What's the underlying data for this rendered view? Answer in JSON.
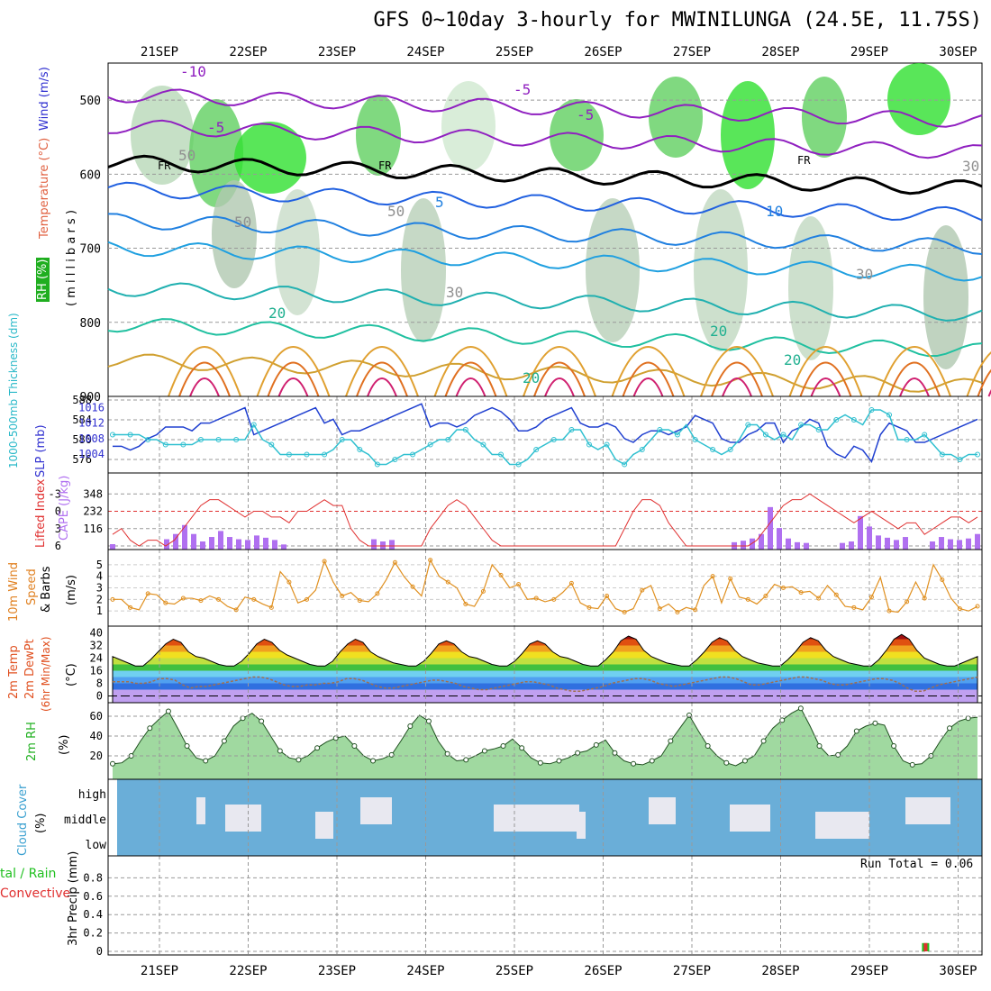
{
  "title": "GFS 0~10day 3-hourly for MWINILUNGA (24.5E, 11.75S)",
  "colors": {
    "rh": "#1fae1f",
    "temp": "#d05028",
    "wind": "#000000",
    "thick": "#28c0d0",
    "slp": "#4040d0",
    "cape": "#b070f0",
    "lifted": "#e03030",
    "wind10": "#e08020",
    "temp2m": "#e05020",
    "dewpt": "#d08030",
    "rh2m": "#20b020",
    "cloud": "#3aa0d0",
    "precip_total": "#20c020",
    "precip_conv": "#e03030"
  },
  "labels": {
    "rh": "RH (%)",
    "temperature": "Temperature (°C)",
    "wind": "Wind (m/s)",
    "millibars": "( m i l l i b a r s )",
    "thickness": "1000-500mb Thickness (dm)",
    "slp": "SLP (mb)",
    "lifted": "Lifted Index",
    "cape": "CAPE (J/kg)",
    "wind10": "10m Wind",
    "speed": "Speed",
    "barbs": "& Barbs",
    "ms": "(m/s)",
    "temp2m": "2m Temp",
    "dewpt": "2m DewPt",
    "minmax": "(6hr Min/Max)",
    "degc": "(°C)",
    "rh2m": "2m RH",
    "pct": "(%)",
    "cloud": "Cloud Cover",
    "cloud_pct": "(%)",
    "precip_total": "tal / Rain",
    "precip_conv": "Convective",
    "precip_axis": "3hr Precip (mm)",
    "run_total": "Run Total = 0.06"
  },
  "chart_data": [
    {
      "type": "line",
      "panel": "upper-air",
      "x": [
        "21SEP",
        "22SEP",
        "23SEP",
        "24SEP",
        "25SEP",
        "26SEP",
        "27SEP",
        "28SEP",
        "29SEP",
        "30SEP"
      ],
      "ylabel": "(millibars)",
      "ylim": [
        900,
        450
      ],
      "yticks": [
        500,
        600,
        700,
        800,
        900
      ],
      "contour_labels": [
        "-10",
        "-5",
        "-5",
        "-5",
        "FR",
        "FR",
        "FR",
        "5",
        "10",
        "20",
        "20",
        "20",
        "20",
        "50",
        "50",
        "50",
        "30",
        "30",
        "30"
      ]
    },
    {
      "type": "line",
      "panel": "thickness-slp",
      "ylabel": "1000-500mb Thickness (dm)",
      "ylim": [
        574,
        588
      ],
      "yticks": [
        576,
        580,
        584,
        588
      ],
      "y2label": "SLP (mb)",
      "y2lim": [
        1000,
        1018
      ],
      "y2ticks": [
        1004,
        1008,
        1012,
        1016
      ],
      "series": [
        {
          "name": "SLP (mb)",
          "values": [
            1006,
            1006,
            1005,
            1006,
            1008,
            1009,
            1011,
            1011,
            1011,
            1010,
            1012,
            1012,
            1013,
            1014,
            1015,
            1016,
            1009,
            1010,
            1011,
            1012,
            1013,
            1014,
            1015,
            1016,
            1012,
            1013,
            1009,
            1010,
            1010,
            1011,
            1012,
            1013,
            1014,
            1015,
            1016,
            1017,
            1011,
            1012,
            1012,
            1011,
            1012,
            1014,
            1015,
            1016,
            1015,
            1013,
            1010,
            1010,
            1011,
            1013,
            1014,
            1015,
            1016,
            1012,
            1011,
            1011,
            1012,
            1011,
            1008,
            1007,
            1009,
            1010,
            1010,
            1009,
            1010,
            1011,
            1014,
            1013,
            1012,
            1008,
            1007,
            1007,
            1009,
            1010,
            1012,
            1012,
            1007,
            1010,
            1011,
            1013,
            1012,
            1006,
            1004,
            1003,
            1006,
            1005,
            1002,
            1009,
            1012,
            1011,
            1010,
            1007,
            1007,
            1008,
            1009,
            1010,
            1011,
            1012,
            1013
          ]
        },
        {
          "name": "1000-500mb Thickness (dm)",
          "values": [
            581,
            581,
            581,
            581,
            580,
            580,
            579,
            579,
            579,
            579,
            580,
            580,
            580,
            580,
            580,
            580,
            583,
            580,
            579,
            577,
            577,
            577,
            577,
            577,
            577,
            578,
            580,
            580,
            578,
            577,
            575,
            575,
            576,
            577,
            577,
            578,
            579,
            580,
            580,
            582,
            582,
            580,
            579,
            577,
            577,
            575,
            575,
            576,
            578,
            579,
            580,
            580,
            582,
            582,
            579,
            578,
            579,
            576,
            575,
            577,
            578,
            580,
            582,
            582,
            581,
            583,
            580,
            579,
            578,
            577,
            578,
            580,
            583,
            583,
            581,
            580,
            581,
            580,
            583,
            583,
            582,
            582,
            584,
            585,
            584,
            583,
            586,
            586,
            585,
            580,
            580,
            580,
            581,
            579,
            577,
            577,
            576,
            577,
            577
          ]
        }
      ]
    },
    {
      "type": "bar",
      "panel": "lifted-cape",
      "ylabel": "Lifted Index",
      "ylim": [
        6,
        -6
      ],
      "yticks": [
        -3,
        0,
        3,
        6
      ],
      "y2label": "CAPE (J/kg)",
      "y2lim": [
        0,
        464
      ],
      "y2ticks": [
        116,
        232,
        348
      ],
      "series": [
        {
          "name": "Lifted Index",
          "values": [
            4,
            3,
            5,
            6,
            5,
            5,
            6,
            5,
            3,
            1,
            -1,
            -2,
            -2,
            -1,
            0,
            1,
            0,
            0,
            1,
            1,
            2,
            0,
            0,
            -1,
            -2,
            -1,
            -1,
            3,
            5,
            6,
            6,
            6,
            6,
            6,
            6,
            6,
            3,
            1,
            -1,
            -2,
            -1,
            1,
            3,
            5,
            6,
            6,
            6,
            6,
            6,
            6,
            6,
            6,
            6,
            6,
            6,
            6,
            6,
            6,
            3,
            0,
            -2,
            -2,
            -1,
            2,
            4,
            6,
            6,
            6,
            6,
            6,
            6,
            6,
            6,
            5,
            3,
            1,
            -1,
            -2,
            -2,
            -3,
            -2,
            -1,
            0,
            1,
            2,
            1,
            0,
            1,
            2,
            3,
            2,
            2,
            4,
            3,
            2,
            1,
            1,
            2,
            1
          ]
        },
        {
          "name": "CAPE (J/kg)",
          "values": [
            12,
            0,
            0,
            0,
            0,
            0,
            45,
            80,
            140,
            80,
            30,
            60,
            100,
            60,
            45,
            40,
            70,
            55,
            40,
            10,
            0,
            0,
            0,
            0,
            0,
            0,
            0,
            0,
            0,
            45,
            30,
            40,
            0,
            0,
            0,
            0,
            0,
            0,
            0,
            0,
            0,
            0,
            0,
            0,
            0,
            0,
            0,
            0,
            0,
            0,
            0,
            0,
            0,
            0,
            0,
            0,
            0,
            0,
            0,
            0,
            0,
            0,
            0,
            0,
            0,
            0,
            0,
            0,
            0,
            25,
            35,
            50,
            80,
            260,
            120,
            50,
            25,
            20,
            0,
            0,
            0,
            20,
            30,
            200,
            130,
            70,
            55,
            40,
            60,
            0,
            0,
            30,
            60,
            45,
            40,
            50,
            80
          ]
        }
      ]
    },
    {
      "type": "line",
      "panel": "wind10",
      "ylabel": "(m/s)",
      "ylim": [
        0,
        6
      ],
      "yticks": [
        1,
        2,
        3,
        4,
        5
      ],
      "series": [
        {
          "name": "Speed",
          "values": [
            2.0,
            2.0,
            1.3,
            1.1,
            2.5,
            2.4,
            1.7,
            1.6,
            2.1,
            2.1,
            1.9,
            2.3,
            2.0,
            1.4,
            1.1,
            2.2,
            2.0,
            1.6,
            1.3,
            4.4,
            3.5,
            1.7,
            2.0,
            2.8,
            5.3,
            3.5,
            2.3,
            2.6,
            1.9,
            1.8,
            2.5,
            3.7,
            5.2,
            4.0,
            3.1,
            2.3,
            5.4,
            4.0,
            3.5,
            3.0,
            1.6,
            1.4,
            2.7,
            5.0,
            4.1,
            3.0,
            3.3,
            2.0,
            2.1,
            1.8,
            2.0,
            2.6,
            3.4,
            1.7,
            1.3,
            1.2,
            2.3,
            1.2,
            0.9,
            1.2,
            2.8,
            3.2,
            1.2,
            1.6,
            0.9,
            1.3,
            1.1,
            3.2,
            4.0,
            1.7,
            3.8,
            2.2,
            2.0,
            1.6,
            2.3,
            3.3,
            3.0,
            3.1,
            2.6,
            2.7,
            2.1,
            3.2,
            2.4,
            1.4,
            1.3,
            1.1,
            2.2,
            3.9,
            1.0,
            0.9,
            1.8,
            3.5,
            2.1,
            5.0,
            3.7,
            2.1,
            1.2,
            1.0,
            1.4
          ]
        }
      ]
    },
    {
      "type": "area",
      "panel": "temp2m",
      "ylabel": "(°C)",
      "ylim": [
        -2,
        42
      ],
      "yticks": [
        0,
        8,
        16,
        24,
        32,
        40
      ],
      "series": [
        {
          "name": "2m Temp",
          "values": [
            25,
            23,
            21,
            19,
            19,
            23,
            28,
            33,
            36,
            34,
            28,
            25,
            24,
            22,
            20,
            19,
            19,
            22,
            27,
            33,
            36,
            34,
            29,
            26,
            24,
            22,
            20,
            19,
            19,
            22,
            28,
            33,
            36,
            34,
            28,
            25,
            23,
            21,
            20,
            19,
            19,
            22,
            27,
            33,
            35,
            33,
            28,
            25,
            24,
            22,
            20,
            19,
            19,
            22,
            27,
            33,
            35,
            33,
            28,
            25,
            24,
            22,
            20,
            19,
            19,
            23,
            28,
            35,
            38,
            36,
            29,
            25,
            23,
            21,
            20,
            19,
            19,
            23,
            28,
            34,
            37,
            35,
            29,
            25,
            23,
            21,
            20,
            19,
            19,
            23,
            28,
            34,
            37,
            35,
            29,
            25,
            23,
            21,
            20,
            19,
            19,
            23,
            29,
            36,
            39,
            36,
            29,
            24,
            22,
            20,
            19,
            19,
            21,
            23,
            25
          ]
        },
        {
          "name": "2m DewPt",
          "values": [
            9,
            9,
            9,
            8,
            8,
            9,
            11,
            11,
            10,
            7,
            5,
            6,
            6,
            7,
            8,
            9,
            10,
            11,
            12,
            12,
            11,
            9,
            7,
            6,
            6,
            7,
            7,
            8,
            8,
            9,
            11,
            11,
            10,
            8,
            6,
            5,
            5,
            6,
            7,
            8,
            9,
            10,
            10,
            9,
            8,
            6,
            5,
            4,
            4,
            5,
            6,
            7,
            8,
            9,
            9,
            8,
            7,
            5,
            4,
            3,
            3,
            4,
            5,
            6,
            8,
            9,
            10,
            11,
            11,
            10,
            8,
            7,
            6,
            7,
            8,
            9,
            10,
            11,
            12,
            12,
            11,
            9,
            7,
            7,
            8,
            9,
            10,
            11,
            12,
            12,
            11,
            10,
            8,
            7,
            7,
            8,
            9,
            10,
            11,
            11,
            10,
            8,
            5,
            3,
            3,
            5,
            7,
            8,
            9,
            10,
            11,
            12
          ]
        }
      ]
    },
    {
      "type": "area",
      "panel": "rh2m",
      "ylabel": "(%)",
      "ylim": [
        0,
        70
      ],
      "yticks": [
        20,
        40,
        60
      ],
      "series": [
        {
          "name": "2m RH",
          "values": [
            12,
            13,
            20,
            35,
            48,
            57,
            65,
            48,
            30,
            18,
            15,
            20,
            35,
            50,
            58,
            63,
            55,
            40,
            25,
            18,
            16,
            20,
            28,
            34,
            38,
            40,
            30,
            20,
            15,
            17,
            21,
            35,
            50,
            61,
            55,
            35,
            22,
            15,
            16,
            20,
            25,
            27,
            30,
            37,
            28,
            18,
            13,
            12,
            15,
            18,
            23,
            25,
            31,
            36,
            23,
            15,
            12,
            11,
            15,
            20,
            35,
            48,
            61,
            45,
            30,
            20,
            13,
            10,
            15,
            20,
            35,
            48,
            56,
            63,
            68,
            50,
            30,
            20,
            21,
            30,
            45,
            50,
            53,
            51,
            30,
            15,
            11,
            12,
            20,
            35,
            48,
            55,
            58,
            59
          ]
        }
      ]
    },
    {
      "type": "area",
      "panel": "cloud",
      "ylabel": "(%)",
      "categories": [
        "high",
        "middle",
        "low"
      ]
    },
    {
      "type": "bar",
      "panel": "precip",
      "ylabel": "3hr Precip (mm)",
      "ylim": [
        0,
        1
      ],
      "yticks": [
        0,
        0.2,
        0.4,
        0.6,
        0.8
      ],
      "series": [
        {
          "name": "Total",
          "values": [
            0,
            0,
            0,
            0,
            0,
            0,
            0,
            0,
            0,
            0,
            0,
            0,
            0,
            0,
            0,
            0,
            0,
            0,
            0,
            0,
            0,
            0,
            0,
            0,
            0,
            0,
            0,
            0,
            0,
            0,
            0,
            0,
            0,
            0,
            0,
            0,
            0,
            0,
            0,
            0,
            0,
            0,
            0,
            0,
            0,
            0,
            0,
            0,
            0,
            0,
            0,
            0,
            0,
            0,
            0,
            0,
            0,
            0,
            0,
            0,
            0,
            0,
            0,
            0,
            0,
            0,
            0,
            0,
            0,
            0,
            0,
            0,
            0,
            0,
            0,
            0,
            0,
            0,
            0,
            0,
            0,
            0,
            0,
            0,
            0,
            0,
            0,
            0,
            0,
            0,
            0,
            0,
            0,
            0,
            0.06,
            0,
            0,
            0,
            0,
            0,
            0
          ]
        }
      ]
    }
  ]
}
